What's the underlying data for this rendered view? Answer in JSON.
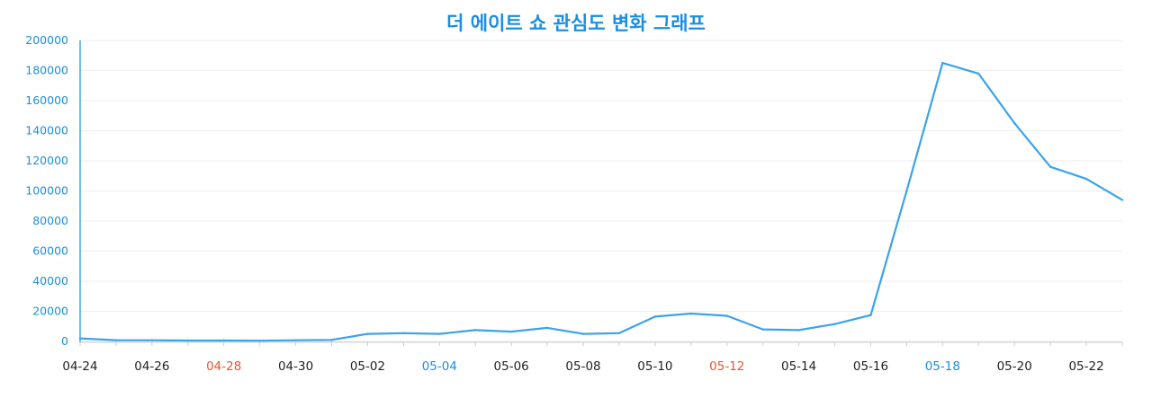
{
  "chart_data": {
    "type": "line",
    "title": "더 에이트 쇼 관심도 변화 그래프",
    "xlabel": "",
    "ylabel": "",
    "ylim": [
      0,
      200000
    ],
    "yticks": [
      "0",
      "20000",
      "40000",
      "60000",
      "80000",
      "100000",
      "120000",
      "140000",
      "160000",
      "180000",
      "200000"
    ],
    "grid": true,
    "x": [
      "04-24",
      "04-25",
      "04-26",
      "04-27",
      "04-28",
      "04-29",
      "04-30",
      "05-01",
      "05-02",
      "05-03",
      "05-04",
      "05-05",
      "05-06",
      "05-07",
      "05-08",
      "05-09",
      "05-10",
      "05-11",
      "05-12",
      "05-13",
      "05-14",
      "05-15",
      "05-16",
      "05-17",
      "05-18",
      "05-19",
      "05-20",
      "05-21",
      "05-22",
      "05-23"
    ],
    "xtick_labels": [
      {
        "label": "04-24",
        "color": "#222222"
      },
      {
        "label": "04-26",
        "color": "#222222"
      },
      {
        "label": "04-28",
        "color": "#e8542f"
      },
      {
        "label": "04-30",
        "color": "#222222"
      },
      {
        "label": "05-02",
        "color": "#222222"
      },
      {
        "label": "05-04",
        "color": "#1a8fe0"
      },
      {
        "label": "05-06",
        "color": "#222222"
      },
      {
        "label": "05-08",
        "color": "#222222"
      },
      {
        "label": "05-10",
        "color": "#222222"
      },
      {
        "label": "05-12",
        "color": "#e8542f"
      },
      {
        "label": "05-14",
        "color": "#222222"
      },
      {
        "label": "05-16",
        "color": "#222222"
      },
      {
        "label": "05-18",
        "color": "#1a8fe0"
      },
      {
        "label": "05-20",
        "color": "#222222"
      },
      {
        "label": "05-22",
        "color": "#222222"
      }
    ],
    "series": [
      {
        "values": [
          2000,
          800,
          800,
          600,
          600,
          500,
          800,
          1000,
          5000,
          5500,
          5000,
          7500,
          6500,
          9000,
          5000,
          5500,
          16500,
          18500,
          17000,
          8000,
          7500,
          11500,
          17500,
          100000,
          185000,
          178000,
          145000,
          116000,
          108000,
          94000
        ],
        "color": "#3ba3e8"
      }
    ],
    "colors": {
      "title": "#1a8fe0",
      "axis": "#1a8fe0",
      "grid": "#eeeeee",
      "line": "#3ba3e8",
      "saturday": "#1a8fe0",
      "sunday": "#e8542f",
      "weekday": "#222222"
    }
  }
}
